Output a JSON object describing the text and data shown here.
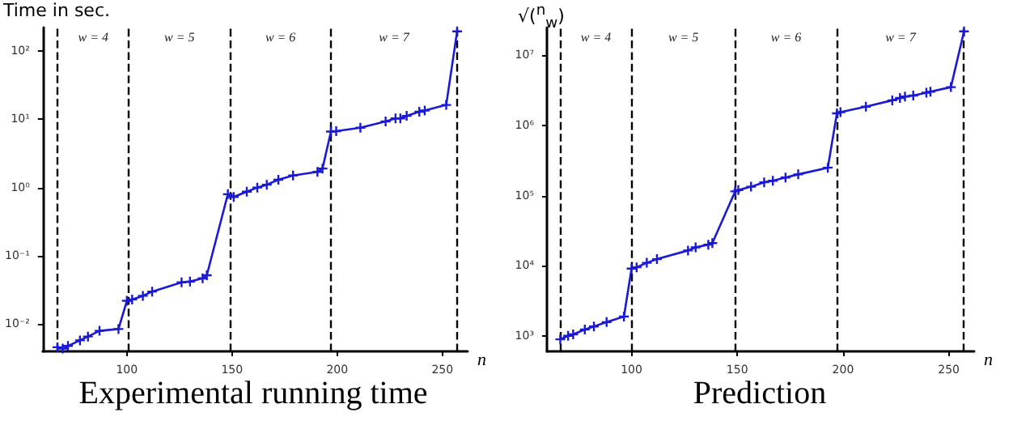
{
  "chart_data": [
    {
      "type": "line",
      "title": "Experimental running time",
      "ylabel": "Time in sec.",
      "xlabel": "n",
      "log": "y",
      "grid": false,
      "marker": "cross",
      "line_style": "solid",
      "xlim": [
        60,
        262
      ],
      "xticks": [
        100,
        150,
        200,
        250
      ],
      "ylim": [
        0.004,
        220
      ],
      "yticks": [
        {
          "value": 0.01,
          "label": "10⁻²"
        },
        {
          "value": 0.1,
          "label": "10⁻¹"
        },
        {
          "value": 1,
          "label": "10⁰"
        },
        {
          "value": 10,
          "label": "10¹"
        },
        {
          "value": 100,
          "label": "10²"
        }
      ],
      "series": [
        {
          "color": "#1a1ad6",
          "x": [
            67,
            69.5,
            72,
            77.7,
            81.5,
            87,
            96,
            100,
            102.5,
            107.6,
            112,
            126,
            130,
            136,
            138,
            148,
            150.8,
            157,
            162,
            166.5,
            172,
            179,
            190.6,
            193,
            197,
            199.5,
            211,
            223,
            227.7,
            230,
            233,
            239,
            241.6,
            251.8,
            257
          ],
          "values": [
            0.0046,
            0.0044,
            0.0048,
            0.0058,
            0.0066,
            0.008,
            0.0085,
            0.022,
            0.023,
            0.026,
            0.03,
            0.041,
            0.042,
            0.047,
            0.052,
            0.8,
            0.73,
            0.87,
            1.0,
            1.1,
            1.3,
            1.5,
            1.7,
            1.9,
            6.6,
            6.7,
            7.5,
            9.3,
            10.3,
            10.3,
            11.2,
            12.9,
            13.4,
            16.2,
            193
          ]
        }
      ],
      "ref_lines": [
        {
          "axis": "x",
          "value": 67,
          "color": "#000000",
          "line_style": "dashed"
        },
        {
          "axis": "x",
          "value": 101,
          "color": "#000000",
          "line_style": "dashed"
        },
        {
          "axis": "x",
          "value": 149,
          "color": "#000000",
          "line_style": "dashed"
        },
        {
          "axis": "x",
          "value": 197,
          "color": "#000000",
          "line_style": "dashed"
        },
        {
          "axis": "x",
          "value": 257,
          "color": "#000000",
          "line_style": "dashed"
        }
      ],
      "annotations": [
        "w = 4",
        "w = 5",
        "w = 6",
        "w = 7"
      ]
    },
    {
      "type": "line",
      "title": "Prediction",
      "ylabel": "√($^{n}$$_{w}$)",
      "xlabel": "n",
      "log": "y",
      "grid": false,
      "marker": "cross",
      "line_style": "solid",
      "xlim": [
        60,
        262
      ],
      "xticks": [
        100,
        150,
        200,
        250
      ],
      "ylim": [
        600,
        25000000
      ],
      "yticks": [
        {
          "value": 1000,
          "label": "10³"
        },
        {
          "value": 10000,
          "label": "10⁴"
        },
        {
          "value": 100000,
          "label": "10⁵"
        },
        {
          "value": 1000000,
          "label": "10⁶"
        },
        {
          "value": 10000000,
          "label": "10⁷"
        }
      ],
      "series": [
        {
          "color": "#1a1ad6",
          "x": [
            66.3,
            70,
            72.4,
            77.9,
            82.2,
            88.2,
            96.4,
            100,
            102.4,
            107.2,
            112,
            126.7,
            130.3,
            136.3,
            138.2,
            149,
            150.5,
            156.5,
            162.7,
            166.8,
            172.8,
            178.8,
            192.8,
            197.1,
            198.8,
            210.8,
            223.3,
            226.9,
            229.3,
            233.2,
            239.4,
            241.3,
            251,
            257.2
          ],
          "values": [
            890,
            1000,
            1050,
            1230,
            1360,
            1570,
            1880,
            9100,
            9500,
            11000,
            12400,
            16500,
            18300,
            20000,
            21000,
            115000,
            120000,
            134000,
            155000,
            163000,
            181000,
            201000,
            250000,
            1490000,
            1550000,
            1860000,
            2290000,
            2470000,
            2590000,
            2680000,
            2940000,
            3030000,
            3530000,
            22000000
          ]
        }
      ],
      "ref_lines": [
        {
          "axis": "x",
          "value": 66.3,
          "color": "#000000",
          "line_style": "dashed"
        },
        {
          "axis": "x",
          "value": 100,
          "color": "#000000",
          "line_style": "dashed"
        },
        {
          "axis": "x",
          "value": 149,
          "color": "#000000",
          "line_style": "dashed"
        },
        {
          "axis": "x",
          "value": 197.1,
          "color": "#000000",
          "line_style": "dashed"
        },
        {
          "axis": "x",
          "value": 257.2,
          "color": "#000000",
          "line_style": "dashed"
        }
      ],
      "annotations": [
        "w = 4",
        "w = 5",
        "w = 6",
        "w = 7"
      ]
    }
  ]
}
